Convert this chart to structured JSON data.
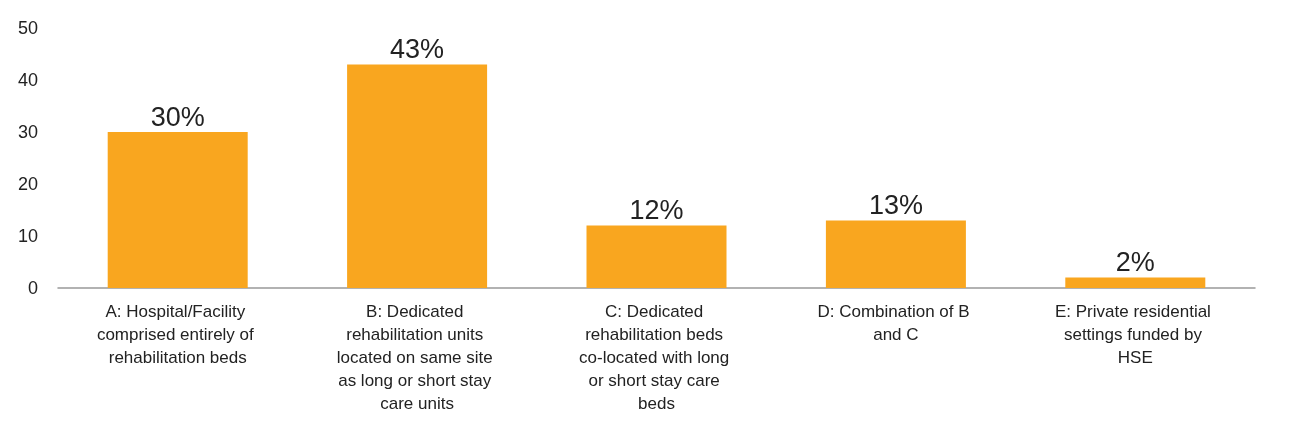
{
  "chart_data": {
    "type": "bar",
    "categories": [
      "A: Hospital/Facility comprised entirely of rehabilitation beds",
      "B: Dedicated rehabilitation units located on same site as long or short stay care units",
      "C: Dedicated rehabilitation beds co-located with long or short stay care beds",
      "D: Combination of B and C",
      "E: Private residential settings funded by HSE"
    ],
    "values": [
      30,
      43,
      12,
      13,
      2
    ],
    "value_labels": [
      "30%",
      "43%",
      "12%",
      "13%",
      "2%"
    ],
    "color": "#f9a61f",
    "ylim": [
      0,
      50
    ],
    "yticks": [
      0,
      10,
      20,
      30,
      40,
      50
    ],
    "grid": false
  }
}
